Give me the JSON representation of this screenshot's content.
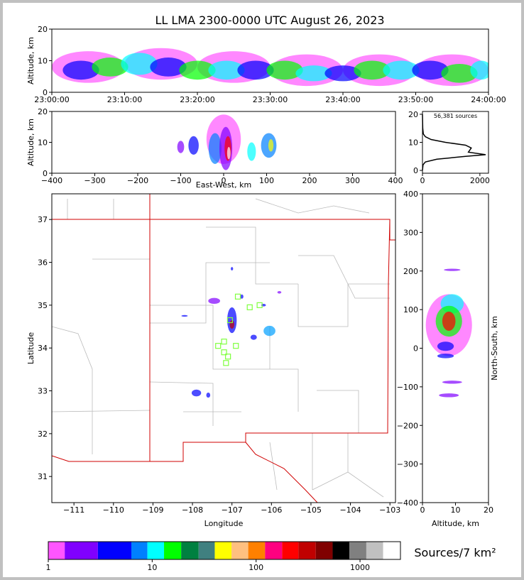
{
  "chart_data": [
    {
      "type": "density",
      "title": "LL LMA 2300-0000 UTC August 26, 2023",
      "ylabel": "Altitude, km",
      "xlim": [
        0,
        60
      ],
      "xticks": [
        {
          "value": 0,
          "label": "23:00:00"
        },
        {
          "value": 10,
          "label": "23:10:00"
        },
        {
          "value": 20,
          "label": "23:20:00"
        },
        {
          "value": 30,
          "label": "23:30:00"
        },
        {
          "value": 40,
          "label": "23:40:00"
        },
        {
          "value": 50,
          "label": "23:50:00"
        },
        {
          "value": 60,
          "label": "24:00:00"
        }
      ],
      "ylim": [
        0,
        20
      ],
      "yticks": [
        0,
        10,
        20
      ],
      "x": [
        5,
        15,
        25,
        35,
        45,
        55,
        4,
        8,
        12,
        16,
        20,
        24,
        28,
        32,
        36,
        40,
        44,
        48,
        52,
        56,
        59
      ],
      "y": [
        8,
        9,
        8,
        7,
        7,
        7,
        7,
        8,
        9,
        8,
        7,
        7,
        7,
        7,
        6,
        6,
        7,
        7,
        7,
        6,
        7
      ],
      "xerr": [
        5,
        5,
        5,
        5,
        5,
        5,
        2.5,
        2.5,
        2.5,
        2.5,
        2.5,
        2.5,
        2.5,
        2.5,
        2.5,
        2.5,
        2.5,
        2.5,
        2.5,
        2.5,
        1.5
      ],
      "yerr": [
        5,
        5,
        5,
        5,
        5,
        5,
        3,
        3,
        3.5,
        3,
        3,
        3,
        3,
        3,
        2.5,
        2.5,
        3,
        3,
        3,
        3,
        3
      ],
      "colors": [
        "#ff55ff",
        "#ff55ff",
        "#ff55ff",
        "#ff55ff",
        "#ff55ff",
        "#ff55ff",
        "#0000ff",
        "#00ff00",
        "#00ffff",
        "#0000ff",
        "#00ff00",
        "#00ffff",
        "#0000ff",
        "#00ff00",
        "#00ffff",
        "#0000ff",
        "#00ff00",
        "#00ffff",
        "#0000ff",
        "#00ff00",
        "#00ffff"
      ]
    },
    {
      "type": "density",
      "xlabel": "East-West, km",
      "ylabel": "Altitude, km",
      "xlim": [
        -400,
        400
      ],
      "xticks": [
        {
          "value": -400,
          "label": "−400"
        },
        {
          "value": -300,
          "label": "−300"
        },
        {
          "value": -200,
          "label": "−200"
        },
        {
          "value": -100,
          "label": "−100"
        },
        0,
        100,
        200,
        300,
        400
      ],
      "ylim": [
        0,
        20
      ],
      "yticks": [
        0,
        10,
        20
      ],
      "x": [
        0,
        -100,
        -70,
        -20,
        65,
        105,
        5,
        10,
        110,
        12
      ],
      "y": [
        11,
        8.5,
        9,
        8,
        7,
        9,
        8,
        8,
        9,
        6.5
      ],
      "xerr": [
        40,
        8,
        12,
        15,
        10,
        18,
        15,
        8,
        6,
        4
      ],
      "yerr": [
        8,
        2,
        3,
        5,
        3,
        4,
        7,
        4,
        2,
        2
      ],
      "colors": [
        "#ff55ff",
        "#8000ff",
        "#0000ff",
        "#0080ff",
        "#00ffff",
        "#0080ff",
        "#8000ff",
        "#ff0000",
        "#ffff00",
        "#ffffff"
      ]
    },
    {
      "type": "line",
      "text": "56,381 sources",
      "xlim": [
        0,
        2300
      ],
      "xticks": [
        0,
        2000
      ],
      "ylim": [
        -1,
        21
      ],
      "yticks": [
        0,
        10,
        20
      ],
      "x": [
        0,
        20,
        100,
        500,
        1500,
        2200,
        1600,
        1700,
        1500,
        800,
        300,
        100,
        30,
        10,
        0
      ],
      "y": [
        0,
        2,
        3,
        4,
        5,
        5.6,
        6.5,
        8,
        9,
        10,
        11,
        12,
        13,
        15,
        20
      ],
      "color": "#000000"
    },
    {
      "type": "density",
      "xlabel": "Longitude",
      "ylabel": "Latitude",
      "xlim": [
        -111.56,
        -102.86
      ],
      "xticks": [
        {
          "value": -111,
          "label": "−111"
        },
        {
          "value": -110,
          "label": "−110"
        },
        {
          "value": -109,
          "label": "−109"
        },
        {
          "value": -108,
          "label": "−108"
        },
        {
          "value": -107,
          "label": "−107"
        },
        {
          "value": -106,
          "label": "−106"
        },
        {
          "value": -105,
          "label": "−105"
        },
        {
          "value": -104,
          "label": "−104"
        },
        {
          "value": -103,
          "label": "−103"
        }
      ],
      "ylim": [
        30.39,
        37.6
      ],
      "yticks": [
        31,
        32,
        33,
        34,
        35,
        36,
        37
      ],
      "x": [
        -107.0,
        -107.45,
        -106.05,
        -107.9,
        -108.2,
        -106.45,
        -107.0,
        -105.8,
        -106.75,
        -107.6,
        -106.2,
        -107.0
      ],
      "y": [
        34.65,
        35.1,
        34.4,
        32.95,
        34.75,
        34.25,
        35.85,
        35.3,
        35.2,
        32.9,
        35.0,
        34.55
      ],
      "xerr": [
        0.12,
        0.15,
        0.15,
        0.12,
        0.08,
        0.08,
        0.03,
        0.05,
        0.04,
        0.05,
        0.06,
        0.06
      ],
      "yerr": [
        0.3,
        0.07,
        0.12,
        0.08,
        0.02,
        0.06,
        0.04,
        0.03,
        0.05,
        0.06,
        0.03,
        0.1
      ],
      "colors": [
        "#0000ff",
        "#8000ff",
        "#00a0ff",
        "#0000ff",
        "#0000ff",
        "#0000ff",
        "#0000ff",
        "#8000ff",
        "#0000ff",
        "#0000ff",
        "#0000ff",
        "#c00000"
      ],
      "stations": {
        "x": [
          -107.35,
          -107.2,
          -106.9,
          -107.2,
          -107.1,
          -106.55,
          -106.3,
          -106.85,
          -107.05,
          -107.15
        ],
        "y": [
          34.05,
          34.15,
          34.05,
          33.9,
          33.8,
          34.95,
          35.0,
          35.2,
          34.65,
          33.65
        ]
      }
    },
    {
      "type": "density",
      "xlabel": "Altitude, km",
      "ylabel": "North-South, km",
      "xlim": [
        0,
        20
      ],
      "xticks": [
        0,
        10,
        20
      ],
      "ylim": [
        -400,
        400
      ],
      "yticks": [
        {
          "value": -400,
          "label": "−400"
        },
        {
          "value": -300,
          "label": "−300"
        },
        {
          "value": -200,
          "label": "−200"
        },
        {
          "value": -100,
          "label": "−100"
        },
        0,
        100,
        200,
        300,
        400
      ],
      "x": [
        8,
        9,
        8,
        7,
        7,
        9,
        8,
        9,
        8
      ],
      "y": [
        60,
        115,
        70,
        5,
        -20,
        -88,
        -122,
        203,
        70
      ],
      "xerr": [
        7,
        3.5,
        4,
        2.5,
        2.5,
        3,
        3,
        2.5,
        2
      ],
      "yerr": [
        80,
        25,
        40,
        12,
        6,
        4,
        5,
        3,
        25
      ],
      "colors": [
        "#ff55ff",
        "#00ffff",
        "#00ff00",
        "#0000ff",
        "#0000ff",
        "#8000ff",
        "#8000ff",
        "#8000ff",
        "#ff0000"
      ]
    },
    {
      "type": "colorbar",
      "label": "Sources/7 km²",
      "bins": [
        1,
        1.44,
        3,
        6.3,
        9,
        13,
        19,
        28,
        40,
        58,
        84,
        122,
        178,
        255,
        375,
        545,
        790,
        1150,
        1670,
        2450
      ],
      "colors": [
        "#ff55ff",
        "#8000ff",
        "#0000ff",
        "#0080ff",
        "#00ffff",
        "#00ff00",
        "#008040",
        "#408080",
        "#ffff00",
        "#ffc080",
        "#ff8000",
        "#ff0080",
        "#ff0000",
        "#c00000",
        "#800000",
        "#000000",
        "#808080",
        "#c0c0c0",
        "#ffffff"
      ],
      "ticks": [
        1,
        10,
        100,
        1000
      ]
    }
  ]
}
